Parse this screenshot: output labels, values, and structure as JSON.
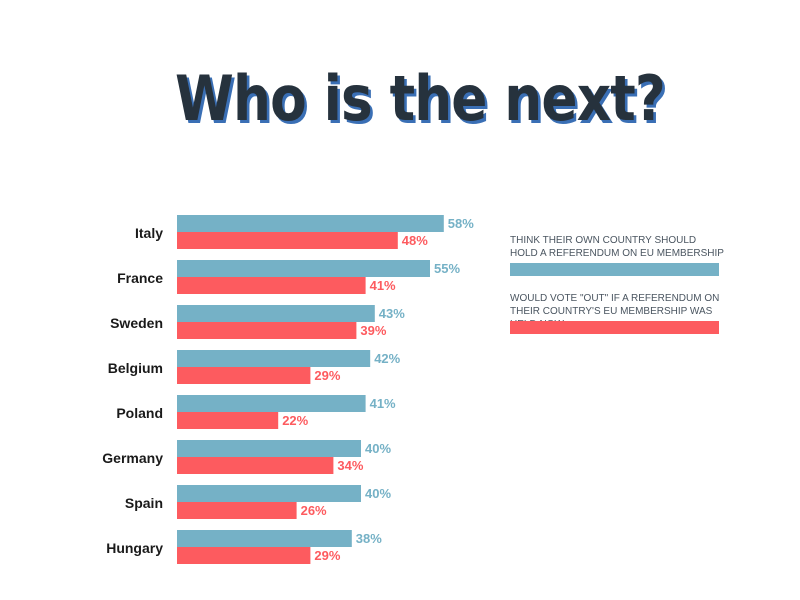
{
  "title": "Who is the next?",
  "colors": {
    "series_1": "#75b1c6",
    "series_2": "#fd5b5f",
    "category_text": "#1a1a1a"
  },
  "legend": [
    {
      "label": "THINK THEIR OWN COUNTRY SHOULD  HOLD A REFERENDUM ON  EU MEMBERSHIP",
      "color": "#75b1c6"
    },
    {
      "label": "WOULD VOTE \"OUT\"  IF A REFERENDUM ON THEIR COUNTRY'S EU MEMBERSHIP WAS HELD NOW",
      "color": "#fd5b5f"
    }
  ],
  "chart_data": {
    "type": "bar",
    "orientation": "horizontal",
    "categories": [
      "Italy",
      "France",
      "Sweden",
      "Belgium",
      "Poland",
      "Germany",
      "Spain",
      "Hungary"
    ],
    "series": [
      {
        "values": [
          58,
          55,
          43,
          42,
          41,
          40,
          40,
          38
        ],
        "color": "#75b1c6"
      },
      {
        "values": [
          48,
          41,
          39,
          29,
          22,
          34,
          26,
          29
        ],
        "color": "#fd5b5f"
      }
    ],
    "value_suffix": "%",
    "legend_position": "right",
    "grid": false
  }
}
